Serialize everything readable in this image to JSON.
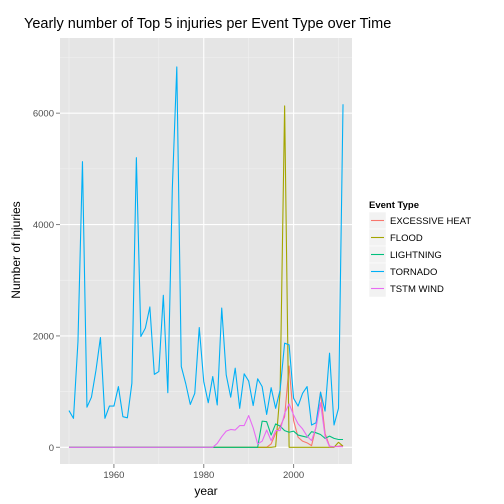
{
  "chart_data": {
    "type": "line",
    "title": "Yearly number of Top 5 injuries per Event Type over Time",
    "xlabel": "year",
    "ylabel": "Number of injuries",
    "xlim": [
      1948,
      2013
    ],
    "ylim": [
      -300,
      7350
    ],
    "x_ticks": [
      1960,
      1980,
      2000
    ],
    "y_ticks": [
      0,
      2000,
      4000,
      6000
    ],
    "grid": true,
    "legend": {
      "title": "Event Type",
      "placement": "right"
    },
    "series": [
      {
        "name": "EXCESSIVE HEAT",
        "color": "#F8766D",
        "x": [
          1950,
          1994,
          1995,
          1996,
          1997,
          1998,
          1999,
          2000,
          2001,
          2002,
          2003,
          2004,
          2005,
          2006,
          2007,
          2008,
          2009,
          2010,
          2011
        ],
        "y": [
          0,
          0,
          60,
          250,
          370,
          550,
          1460,
          480,
          180,
          110,
          80,
          30,
          370,
          990,
          250,
          20,
          10,
          20,
          30
        ]
      },
      {
        "name": "FLOOD",
        "color": "#A3A500",
        "x": [
          1950,
          1992,
          1993,
          1994,
          1995,
          1996,
          1997,
          1998,
          1999,
          2000,
          2001,
          2002,
          2003,
          2004,
          2005,
          2006,
          2007,
          2008,
          2009,
          2010,
          2011
        ],
        "y": [
          0,
          0,
          0,
          0,
          0,
          10,
          1000,
          6130,
          0,
          0,
          0,
          0,
          0,
          0,
          0,
          0,
          0,
          0,
          0,
          90,
          20
        ]
      },
      {
        "name": "LIGHTNING",
        "color": "#00BF7D",
        "x": [
          1950,
          1992,
          1993,
          1994,
          1995,
          1996,
          1997,
          1998,
          1999,
          2000,
          2001,
          2002,
          2003,
          2004,
          2005,
          2006,
          2007,
          2008,
          2009,
          2010,
          2011
        ],
        "y": [
          0,
          0,
          470,
          460,
          220,
          420,
          380,
          300,
          270,
          290,
          220,
          200,
          180,
          280,
          260,
          230,
          160,
          200,
          160,
          140,
          140
        ]
      },
      {
        "name": "TORNADO",
        "color": "#00B0F6",
        "x": [
          1950,
          1951,
          1952,
          1953,
          1954,
          1955,
          1956,
          1957,
          1958,
          1959,
          1960,
          1961,
          1962,
          1963,
          1964,
          1965,
          1966,
          1967,
          1968,
          1969,
          1970,
          1971,
          1972,
          1973,
          1974,
          1975,
          1976,
          1977,
          1978,
          1979,
          1980,
          1981,
          1982,
          1983,
          1984,
          1985,
          1986,
          1987,
          1988,
          1989,
          1990,
          1991,
          1992,
          1993,
          1994,
          1995,
          1996,
          1997,
          1998,
          1999,
          2000,
          2001,
          2002,
          2003,
          2004,
          2005,
          2006,
          2007,
          2008,
          2009,
          2010,
          2011
        ],
        "y": [
          660,
          520,
          1900,
          5130,
          720,
          900,
          1380,
          1970,
          520,
          740,
          740,
          1090,
          550,
          530,
          1150,
          5200,
          1990,
          2140,
          2520,
          1310,
          1360,
          2730,
          980,
          4640,
          6830,
          1450,
          1140,
          770,
          970,
          2150,
          1180,
          800,
          1270,
          760,
          2500,
          1300,
          900,
          1420,
          700,
          1320,
          1190,
          750,
          1230,
          1090,
          590,
          1070,
          700,
          1030,
          1870,
          1840,
          880,
          740,
          970,
          1090,
          400,
          440,
          990,
          650,
          1690,
          400,
          700,
          6160
        ]
      },
      {
        "name": "TSTM WIND",
        "color": "#E76BF3",
        "x": [
          1950,
          1982,
          1983,
          1984,
          1985,
          1986,
          1987,
          1988,
          1989,
          1990,
          1991,
          1992,
          1993,
          1994,
          1995,
          1996,
          1997,
          1998,
          1999,
          2000,
          2001,
          2002,
          2003,
          2004,
          2005,
          2006,
          2007,
          2008,
          2009,
          2010,
          2011
        ],
        "y": [
          0,
          0,
          70,
          190,
          290,
          320,
          310,
          390,
          390,
          570,
          350,
          60,
          110,
          310,
          120,
          300,
          300,
          610,
          780,
          580,
          420,
          330,
          200,
          120,
          360,
          800,
          200,
          10,
          10,
          10,
          10
        ]
      }
    ]
  }
}
